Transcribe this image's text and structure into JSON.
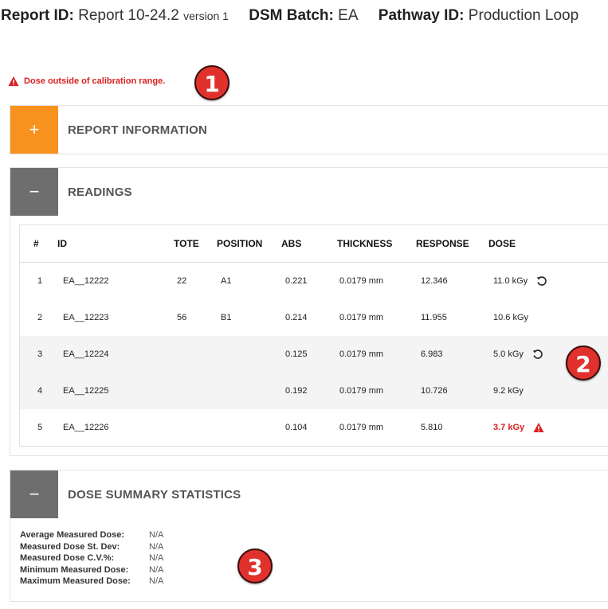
{
  "header": {
    "report_id_label": "Report ID:",
    "report_id_value": "Report 10-24.2",
    "version": "version 1",
    "batch_label": "DSM Batch:",
    "batch_value": "EA",
    "pathway_label": "Pathway ID:",
    "pathway_value": "Production Loop"
  },
  "alert": {
    "text": "Dose outside of calibration range.",
    "icon": "warning-triangle-icon",
    "color": "#d92020"
  },
  "callouts": [
    "1",
    "2",
    "3"
  ],
  "panels": {
    "report_info": {
      "title": "REPORT INFORMATION",
      "toggle": "+",
      "color": "#f8921e"
    },
    "readings": {
      "title": "READINGS",
      "toggle": "−",
      "color": "#6e6e6e"
    },
    "summary": {
      "title": "DOSE SUMMARY STATISTICS",
      "toggle": "−",
      "color": "#6e6e6e"
    }
  },
  "table": {
    "columns": [
      "#",
      "ID",
      "TOTE",
      "POSITION",
      "ABS",
      "THICKNESS",
      "RESPONSE",
      "DOSE"
    ],
    "rows": [
      {
        "num": "1",
        "id": "EA__12222",
        "tote": "22",
        "position": "A1",
        "abs": "0.221",
        "thickness": "0.0179 mm",
        "response": "12.346",
        "dose": "11.0 kGy",
        "icon": "refresh-icon"
      },
      {
        "num": "2",
        "id": "EA__12223",
        "tote": "56",
        "position": "B1",
        "abs": "0.214",
        "thickness": "0.0179 mm",
        "response": "11.955",
        "dose": "10.6 kGy",
        "icon": ""
      },
      {
        "num": "3",
        "id": "EA__12224",
        "tote": "",
        "position": "",
        "abs": "0.125",
        "thickness": "0.0179 mm",
        "response": "6.983",
        "dose": "5.0 kGy",
        "icon": "refresh-icon"
      },
      {
        "num": "4",
        "id": "EA__12225",
        "tote": "",
        "position": "",
        "abs": "0.192",
        "thickness": "0.0179 mm",
        "response": "10.726",
        "dose": "9.2 kGy",
        "icon": ""
      },
      {
        "num": "5",
        "id": "EA__12226",
        "tote": "",
        "position": "",
        "abs": "0.104",
        "thickness": "0.0179 mm",
        "response": "5.810",
        "dose": "3.7 kGy",
        "icon": "warning-triangle-icon",
        "out_of_range": true
      }
    ]
  },
  "summary": {
    "avg_label": "Average Measured Dose:",
    "avg_value": "N/A",
    "stdev_label": "Measured Dose St. Dev:",
    "stdev_value": "N/A",
    "cv_label": "Measured Dose C.V.%:",
    "cv_value": "N/A",
    "min_label": "Minimum Measured Dose:",
    "min_value": "N/A",
    "max_label": "Maximum Measured Dose:",
    "max_value": "N/A"
  }
}
